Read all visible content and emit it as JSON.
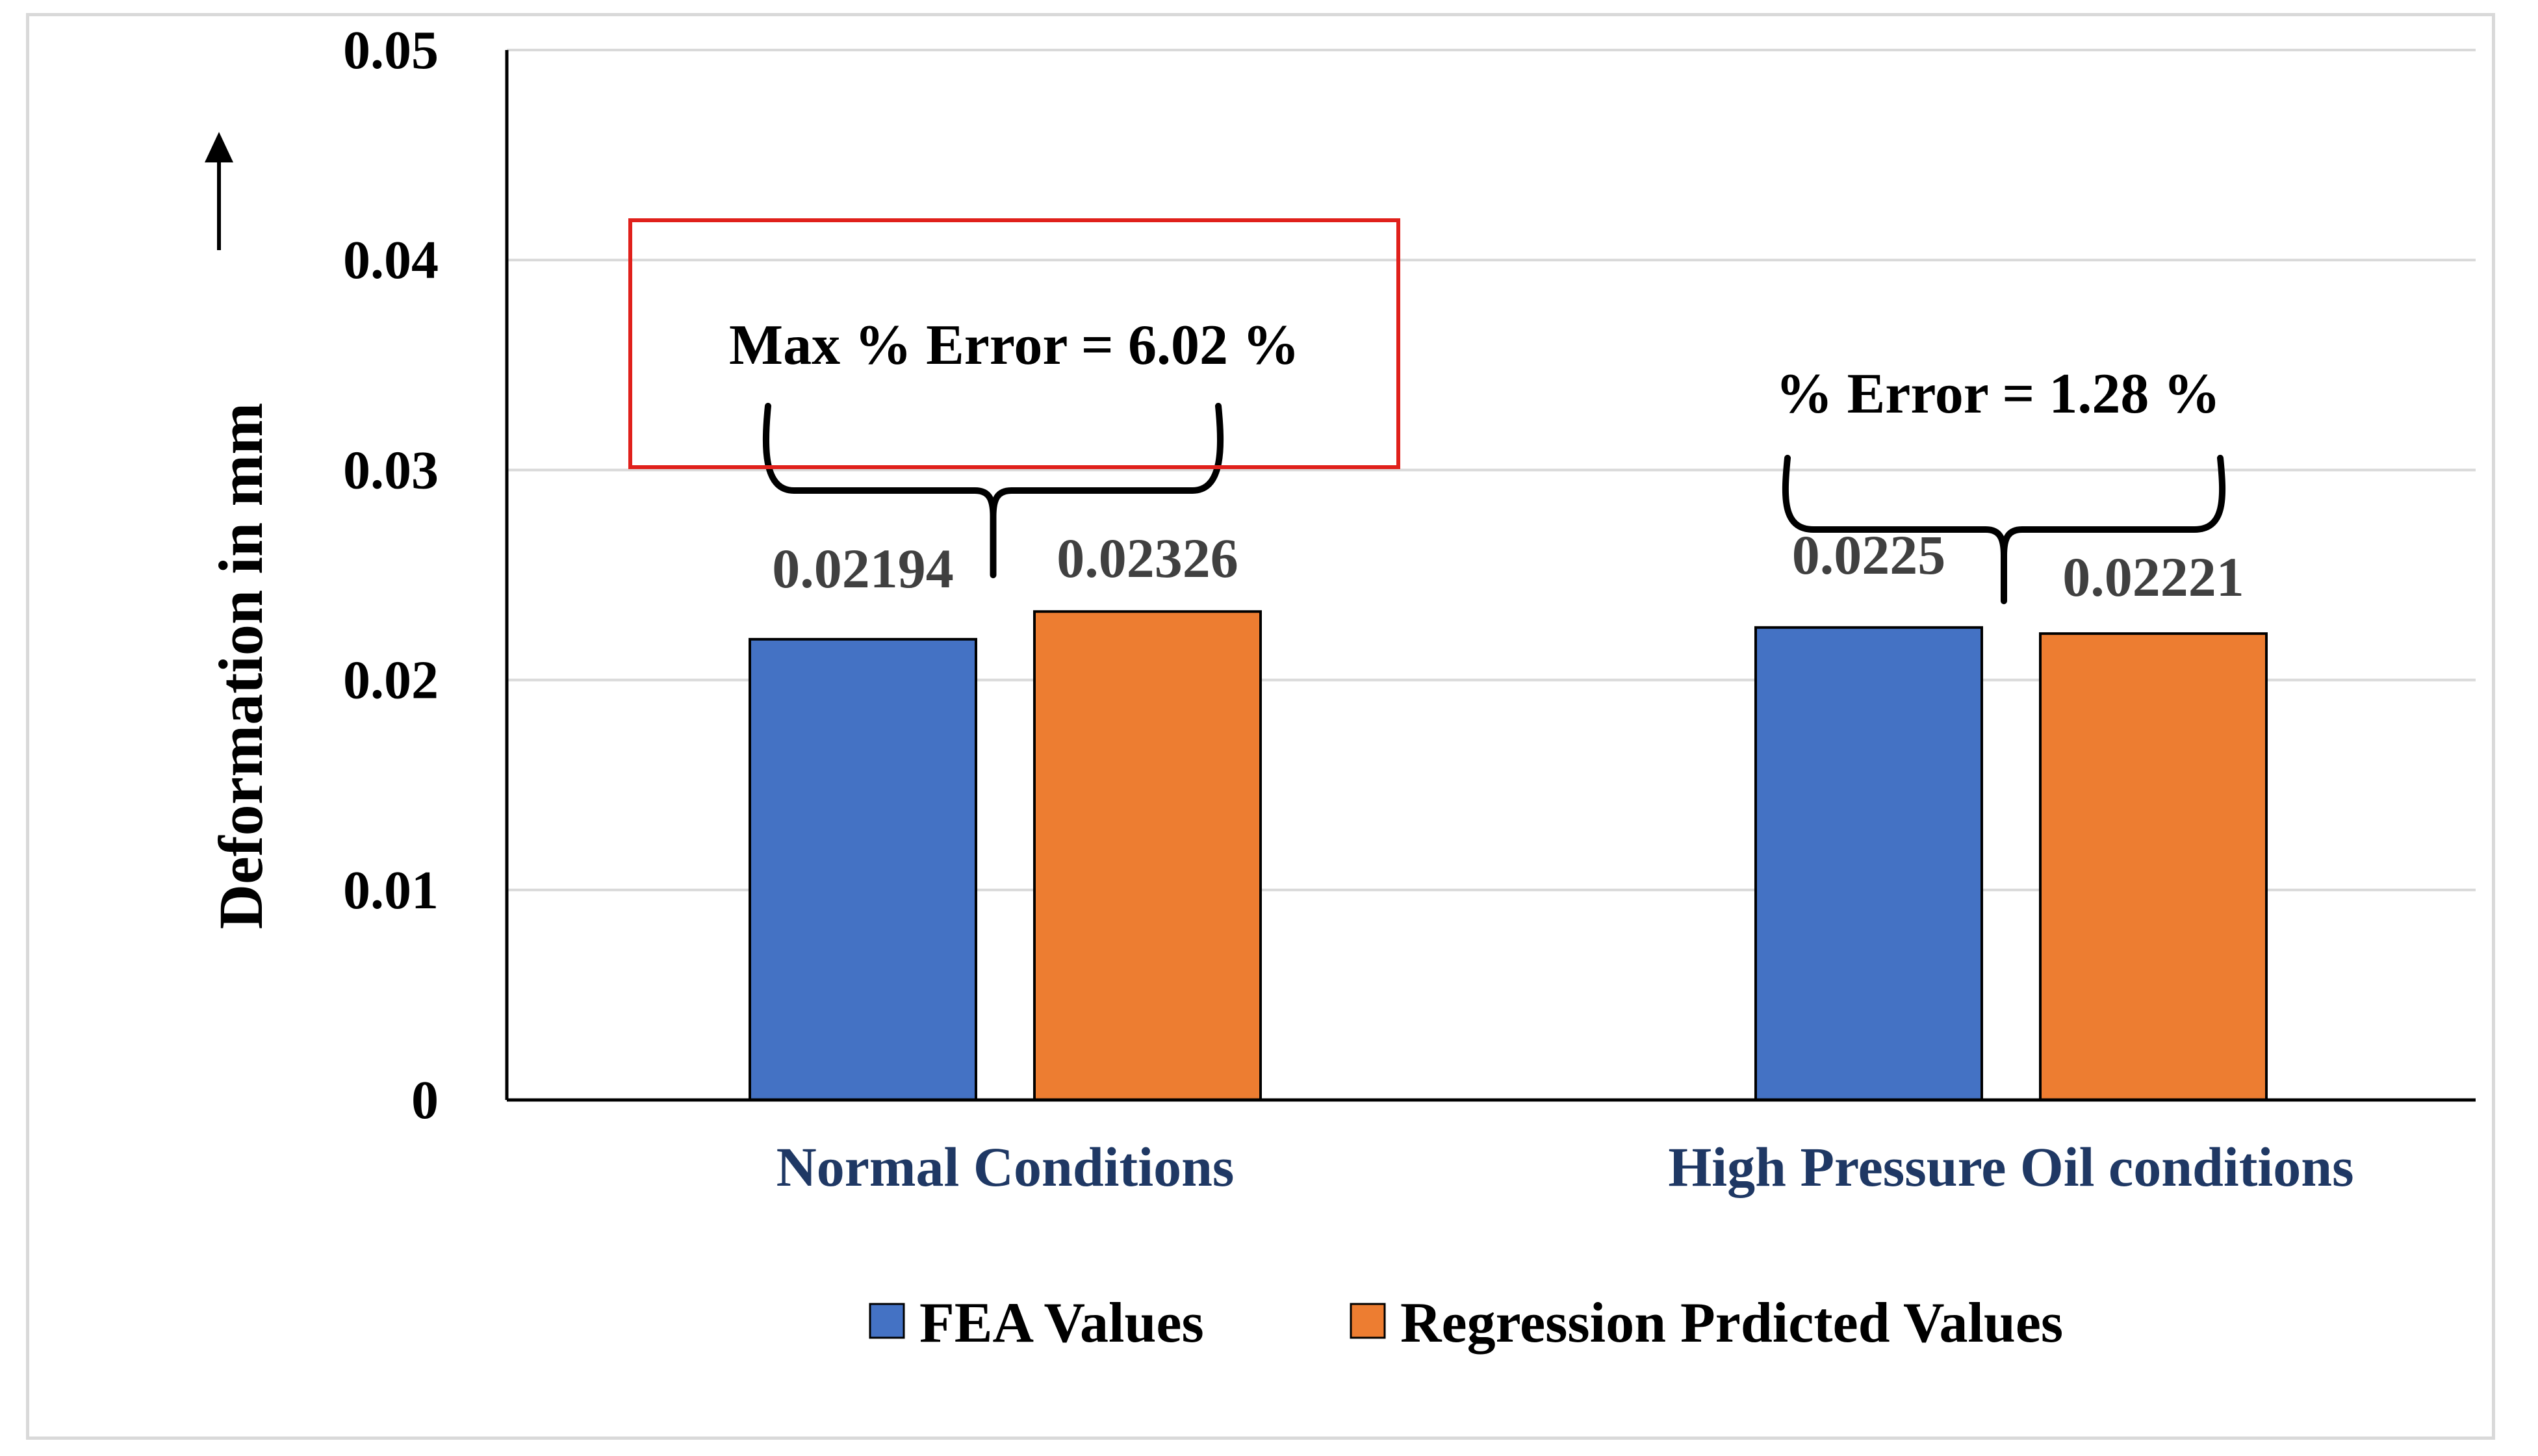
{
  "chart_data": {
    "type": "bar",
    "title": "",
    "xlabel": "",
    "ylabel": "Deformation in mm",
    "ylabel_arrow": "up-arrow",
    "ylim": [
      0,
      0.05
    ],
    "yticks": [
      0,
      0.01,
      0.02,
      0.03,
      0.04,
      0.05
    ],
    "ytick_labels": [
      "0",
      "0.01",
      "0.02",
      "0.03",
      "0.04",
      "0.05"
    ],
    "gridlines": true,
    "categories": [
      "Normal Conditions",
      "High Pressure Oil conditions"
    ],
    "series": [
      {
        "name": "FEA Values",
        "color": "#4472c4",
        "values": [
          0.02194,
          0.0225
        ],
        "labels": [
          "0.02194",
          "0.0225"
        ]
      },
      {
        "name": "Regression Prdicted Values",
        "color": "#ed7d31",
        "values": [
          0.02326,
          0.02221
        ],
        "labels": [
          "0.02326",
          "0.02221"
        ]
      }
    ],
    "legend": {
      "position": "bottom",
      "items": [
        "FEA Values",
        "Regression Prdicted Values"
      ]
    },
    "annotations": [
      {
        "category": "Normal Conditions",
        "text": "Max % Error = 6.02 %",
        "boxed": true,
        "box_color": "#e0201b"
      },
      {
        "category": "High Pressure Oil conditions",
        "text": "% Error = 1.28 %",
        "boxed": false
      }
    ],
    "colors": {
      "axis": "#000000",
      "grid": "#d9d9d9",
      "category_label": "#1f3864",
      "data_label": "#404040",
      "brace": "#000000"
    }
  }
}
